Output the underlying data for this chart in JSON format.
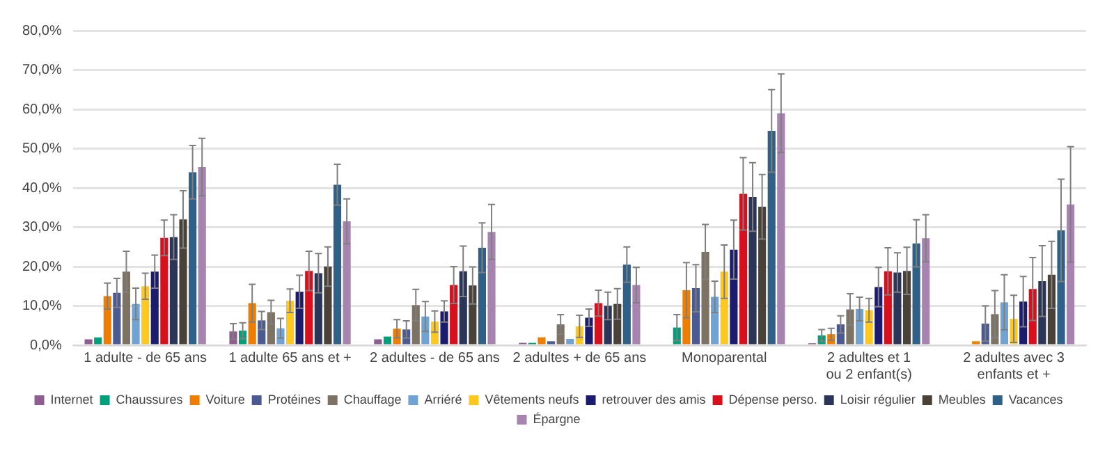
{
  "chart_data": {
    "type": "bar",
    "categories": [
      "1 adulte - de 65 ans",
      "1 adulte 65 ans et +",
      "2 adultes - de 65 ans",
      "2 adultes + de 65 ans",
      "Monoparental",
      "2 adultes et 1 ou 2 enfant(s)",
      "2 adultes avec 3 enfants et +"
    ],
    "ylim": [
      0,
      80
    ],
    "yticks": [
      {
        "value": 0,
        "label": "0,0%"
      },
      {
        "value": 10,
        "label": "10,0%"
      },
      {
        "value": 20,
        "label": "20,0%"
      },
      {
        "value": 30,
        "label": "30,0%"
      },
      {
        "value": 40,
        "label": "40,0%"
      },
      {
        "value": 50,
        "label": "50,0%"
      },
      {
        "value": 60,
        "label": "60,0%"
      },
      {
        "value": 70,
        "label": "70,0%"
      },
      {
        "value": 80,
        "label": "80,0%"
      }
    ],
    "grid": "y",
    "legend": "bottom",
    "series": [
      {
        "name": "Internet",
        "color": "#8e5e91",
        "values": [
          1.5,
          3.5,
          1.5,
          0.6,
          null,
          0.5,
          null
        ],
        "errors": [
          null,
          2,
          null,
          null,
          null,
          null,
          null
        ]
      },
      {
        "name": "Chaussures",
        "color": "#00a07a",
        "values": [
          2,
          3.7,
          2.2,
          0.6,
          4.5,
          2.5,
          null
        ],
        "errors": [
          null,
          2,
          null,
          null,
          3.3,
          1.5,
          null
        ]
      },
      {
        "name": "Voiture",
        "color": "#ef7d00",
        "values": [
          12.5,
          10.7,
          4.2,
          2,
          14,
          2.8,
          1
        ],
        "errors": [
          3.3,
          4.8,
          2.3,
          null,
          7,
          1.5,
          null
        ]
      },
      {
        "name": "Protéines",
        "color": "#4b5a91",
        "values": [
          13.3,
          6.3,
          4,
          1,
          14.5,
          5.3,
          5.5
        ],
        "errors": [
          3.7,
          2.3,
          2.2,
          null,
          6,
          2.2,
          4.5
        ]
      },
      {
        "name": "Chauffage",
        "color": "#7d7365",
        "values": [
          18.7,
          8.4,
          10.2,
          5.3,
          23.7,
          9.1,
          7.9
        ],
        "errors": [
          5.2,
          3,
          4,
          2.5,
          7,
          4,
          6
        ]
      },
      {
        "name": "Arriéré",
        "color": "#6fa3d4",
        "values": [
          10.5,
          4.3,
          7.3,
          1.6,
          12.3,
          9.2,
          10.9
        ],
        "errors": [
          4,
          2.5,
          3.8,
          null,
          4,
          3,
          7
        ]
      },
      {
        "name": "Vêtements neufs",
        "color": "#ffc820",
        "values": [
          15,
          11.3,
          6,
          4.8,
          18.7,
          8.9,
          6.7
        ],
        "errors": [
          3.3,
          3,
          2.7,
          2.8,
          6.8,
          3,
          6
        ]
      },
      {
        "name": "retrouver des amis",
        "color": "#1c1c6e",
        "values": [
          18.7,
          13.6,
          8.6,
          7,
          24.3,
          14.8,
          11.1
        ],
        "errors": [
          4.2,
          4.2,
          2.7,
          2.2,
          7.5,
          5,
          6.4
        ]
      },
      {
        "name": "Dépense perso.",
        "color": "#d7101e",
        "values": [
          27.3,
          18.9,
          15.3,
          10.7,
          38.5,
          18.8,
          14.3
        ],
        "errors": [
          4.5,
          5,
          4.7,
          3.3,
          9.2,
          6,
          8
        ]
      },
      {
        "name": "Loisir régulier",
        "color": "#2a3558",
        "values": [
          27.5,
          18.3,
          18.8,
          10,
          37.7,
          18.5,
          16.3
        ],
        "errors": [
          5.7,
          5,
          6.4,
          3.5,
          8.7,
          5,
          9
        ]
      },
      {
        "name": "Meubles",
        "color": "#4a4238",
        "values": [
          32,
          20,
          15.2,
          10.5,
          35.2,
          18.9,
          17.9
        ],
        "errors": [
          7.3,
          5,
          4.7,
          3.9,
          8.2,
          6,
          8.5
        ]
      },
      {
        "name": "Vacances",
        "color": "#2e6088",
        "values": [
          44,
          40.8,
          24.8,
          20.5,
          54.5,
          25.9,
          29.2
        ],
        "errors": [
          6.8,
          5.2,
          6.3,
          4.5,
          10.5,
          6,
          13
        ]
      },
      {
        "name": "Épargne",
        "color": "#a783b0",
        "values": [
          45.3,
          31.5,
          28.8,
          15.3,
          59,
          27.2,
          35.8
        ],
        "errors": [
          7.3,
          5.7,
          7,
          4.5,
          10,
          6,
          14.7
        ]
      }
    ]
  }
}
